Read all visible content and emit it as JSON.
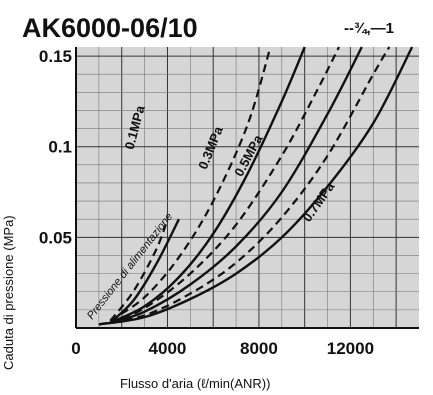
{
  "chart_data": {
    "type": "line",
    "title": "AK6000-06/10",
    "legend": "--¾,—1",
    "xlabel": "Flusso d'aria (ℓ/min(ANR))",
    "ylabel": "Caduta di pressione (MPa)",
    "annotation": "Pressione di alimentazione",
    "xlim": [
      0,
      15000
    ],
    "ylim": [
      0,
      0.155
    ],
    "grid": true,
    "x_tick_labels": [
      "0",
      "4000",
      "8000",
      "12000"
    ],
    "y_tick_labels": [
      "0.15",
      "0.1",
      "0.05"
    ],
    "series": [
      {
        "name": "0.1MPa",
        "style": "solid",
        "x": [
          1500,
          2500,
          3500,
          4500
        ],
        "y": [
          0.003,
          0.015,
          0.035,
          0.06
        ]
      },
      {
        "name": "",
        "style": "dashed",
        "x": [
          1500,
          2500,
          3500,
          4000
        ],
        "y": [
          0.004,
          0.02,
          0.043,
          0.06
        ]
      },
      {
        "name": "0.3MPa",
        "style": "solid",
        "x": [
          1500,
          3000,
          4500,
          6000,
          7500,
          9000,
          10000
        ],
        "y": [
          0.003,
          0.012,
          0.028,
          0.052,
          0.085,
          0.125,
          0.155
        ]
      },
      {
        "name": "",
        "style": "dashed",
        "x": [
          1500,
          3000,
          4500,
          6000,
          7500,
          8500
        ],
        "y": [
          0.004,
          0.017,
          0.039,
          0.07,
          0.112,
          0.155
        ]
      },
      {
        "name": "0.5MPa",
        "style": "solid",
        "x": [
          1500,
          3000,
          5000,
          7000,
          9000,
          11000,
          12500
        ],
        "y": [
          0.003,
          0.009,
          0.024,
          0.045,
          0.075,
          0.118,
          0.155
        ]
      },
      {
        "name": "",
        "style": "dashed",
        "x": [
          1500,
          3000,
          5000,
          7000,
          9000,
          10500,
          11500
        ],
        "y": [
          0.003,
          0.011,
          0.03,
          0.057,
          0.095,
          0.13,
          0.155
        ]
      },
      {
        "name": "0.7MPa",
        "style": "solid",
        "x": [
          1000,
          3000,
          5000,
          7000,
          9000,
          11000,
          13000,
          14700
        ],
        "y": [
          0.002,
          0.006,
          0.016,
          0.03,
          0.05,
          0.078,
          0.113,
          0.155
        ]
      },
      {
        "name": "",
        "style": "dashed",
        "x": [
          1000,
          3000,
          5000,
          7000,
          9000,
          11000,
          13000,
          13700
        ],
        "y": [
          0.002,
          0.007,
          0.019,
          0.036,
          0.061,
          0.095,
          0.14,
          0.155
        ]
      }
    ]
  }
}
